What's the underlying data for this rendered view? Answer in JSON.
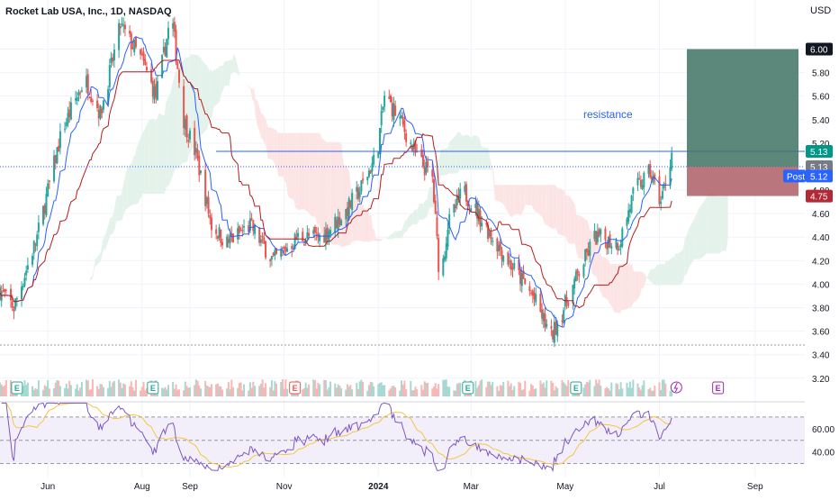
{
  "chart_data": [
    {
      "type": "candlestick",
      "title": "Rocket Lab USA, Inc., 1D, NASDAQ",
      "currency": "USD",
      "x_tick_labels": [
        "Jun",
        "Aug",
        "Sep",
        "Nov",
        "2024",
        "Mar",
        "May",
        "Jul",
        "Sep"
      ],
      "y_tick_labels": [
        "6.00",
        "5.80",
        "5.60",
        "5.40",
        "5.20",
        "5.00",
        "4.80",
        "4.60",
        "4.40",
        "4.20",
        "4.00",
        "3.80",
        "3.60",
        "3.40",
        "3.20"
      ],
      "ylim": [
        3.16,
        6.18
      ],
      "price_path": [
        {
          "date": "2023-05-01",
          "price": 3.95
        },
        {
          "date": "2023-05-10",
          "price": 3.8
        },
        {
          "date": "2023-05-25",
          "price": 4.4
        },
        {
          "date": "2023-06-10",
          "price": 5.3
        },
        {
          "date": "2023-06-25",
          "price": 5.75
        },
        {
          "date": "2023-07-05",
          "price": 5.45
        },
        {
          "date": "2023-07-18",
          "price": 6.2
        },
        {
          "date": "2023-08-01",
          "price": 5.9
        },
        {
          "date": "2023-08-10",
          "price": 5.6
        },
        {
          "date": "2023-08-20",
          "price": 6.3
        },
        {
          "date": "2023-08-28",
          "price": 5.4
        },
        {
          "date": "2023-09-05",
          "price": 5.1
        },
        {
          "date": "2023-09-15",
          "price": 4.5
        },
        {
          "date": "2023-09-25",
          "price": 4.35
        },
        {
          "date": "2023-10-10",
          "price": 4.5
        },
        {
          "date": "2023-10-25",
          "price": 4.2
        },
        {
          "date": "2023-11-10",
          "price": 4.4
        },
        {
          "date": "2023-11-25",
          "price": 4.4
        },
        {
          "date": "2023-12-10",
          "price": 4.6
        },
        {
          "date": "2023-12-20",
          "price": 4.8
        },
        {
          "date": "2023-12-31",
          "price": 5.1
        },
        {
          "date": "2024-01-05",
          "price": 5.6
        },
        {
          "date": "2024-01-15",
          "price": 5.4
        },
        {
          "date": "2024-01-25",
          "price": 5.1
        },
        {
          "date": "2024-02-05",
          "price": 4.9
        },
        {
          "date": "2024-02-10",
          "price": 4.0
        },
        {
          "date": "2024-02-15",
          "price": 4.5
        },
        {
          "date": "2024-02-25",
          "price": 4.8
        },
        {
          "date": "2024-03-10",
          "price": 4.5
        },
        {
          "date": "2024-03-25",
          "price": 4.2
        },
        {
          "date": "2024-04-10",
          "price": 3.9
        },
        {
          "date": "2024-04-22",
          "price": 3.55
        },
        {
          "date": "2024-05-05",
          "price": 3.95
        },
        {
          "date": "2024-05-20",
          "price": 4.4
        },
        {
          "date": "2024-06-05",
          "price": 4.35
        },
        {
          "date": "2024-06-15",
          "price": 4.8
        },
        {
          "date": "2024-06-25",
          "price": 4.95
        },
        {
          "date": "2024-07-02",
          "price": 4.7
        },
        {
          "date": "2024-07-09",
          "price": 5.12
        }
      ],
      "resistance": {
        "label": "resistance",
        "price": 5.13
      },
      "price_labels": [
        {
          "text": "6.00",
          "price": 6.0,
          "color": "#131722"
        },
        {
          "text": "5.13",
          "price": 5.13,
          "color": "#009688"
        },
        {
          "text": "5.13",
          "price": 5.0,
          "color": "#787b86"
        },
        {
          "text": "5.12",
          "price": 4.92,
          "color": "#2962ff"
        },
        {
          "text": "4.75",
          "price": 4.75,
          "color": "#b22833"
        }
      ],
      "post_label": "Post",
      "position": {
        "entry": 5.0,
        "target": 6.0,
        "stop": 4.75
      },
      "earnings_markers": [
        "E",
        "E",
        "E",
        "E",
        "E",
        "E",
        "E"
      ],
      "rsi": {
        "levels": [
          70,
          50,
          30
        ],
        "tick_labels": [
          "60.00",
          "40.00"
        ],
        "ylim": [
          25,
          80
        ]
      },
      "colors": {
        "up": "#26a69a",
        "down": "#ef5350",
        "resistance": "#2962ff",
        "rsi": "#7e57c2",
        "rsi_ma": "#f5c542",
        "target_zone": "#3f7364",
        "stop_zone": "#a8545d"
      }
    }
  ]
}
